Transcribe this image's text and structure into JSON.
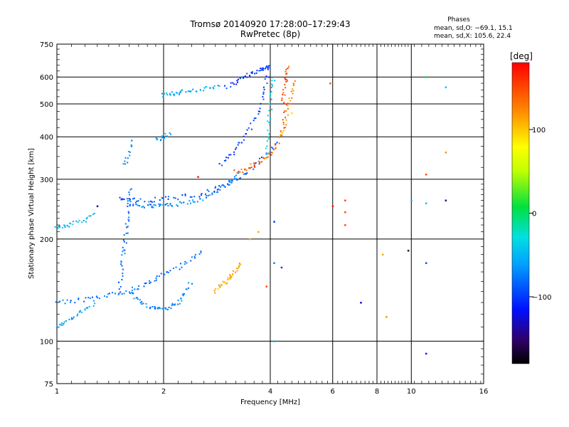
{
  "chart_data": {
    "type": "scatter",
    "title": "Tromsø 20140920 17:28:00–17:29:43",
    "subtitle": "RwPretec (8p)",
    "xlabel": "Frequency [MHz]",
    "ylabel": "Stationary phase Virtual Height [km]",
    "x_scale": "log",
    "y_scale": "log",
    "xlim": [
      1,
      16
    ],
    "ylim": [
      75,
      750
    ],
    "x_ticks": [
      "1",
      "2",
      "4",
      "6",
      "8",
      "10",
      "16"
    ],
    "y_ticks": [
      "75",
      "100",
      "200",
      "300",
      "400",
      "500",
      "600",
      "750"
    ],
    "x_grid": [
      2,
      4,
      6,
      8,
      10
    ],
    "y_grid": [
      100,
      200,
      300,
      400,
      500,
      600
    ],
    "grid": true,
    "legend": {
      "heading": "Phases",
      "lines": [
        "mean, sd,O: −69.1, 15.1",
        "mean, sd,X: 105.6, 22.4"
      ],
      "placement": "top-right"
    },
    "colorbar": {
      "label": "[deg]",
      "range": [
        -180,
        180
      ],
      "ticks": [
        "100",
        "0",
        "−100"
      ],
      "tick_values": [
        100,
        0,
        -100
      ]
    },
    "traces": [
      {
        "name": "",
        "x": [
          1.0,
          1.05,
          1.12,
          1.2,
          1.3
        ],
        "y": [
          110,
          113,
          118,
          124,
          132
        ],
        "phase": -60
      },
      {
        "name": "",
        "x": [
          1.0,
          1.1,
          1.25,
          1.4,
          1.55,
          1.7,
          1.85,
          2.0,
          2.2,
          2.4,
          2.6
        ],
        "y": [
          130,
          131,
          133,
          136,
          140,
          144,
          150,
          157,
          165,
          175,
          185
        ],
        "phase": -80
      },
      {
        "name": "",
        "x": [
          1.6,
          1.7,
          1.8,
          1.9,
          2.0,
          2.1,
          2.2,
          2.3,
          2.4
        ],
        "y": [
          140,
          132,
          127,
          125,
          124,
          126,
          130,
          138,
          150
        ],
        "phase": -70
      },
      {
        "name": "",
        "x": [
          1.0,
          1.05,
          1.1,
          1.2,
          1.3
        ],
        "y": [
          215,
          218,
          222,
          228,
          236
        ],
        "phase": -50
      },
      {
        "name": "",
        "x": [
          1.6,
          1.7,
          1.8,
          1.9,
          2.0,
          2.1,
          2.3,
          2.5,
          2.7,
          2.9,
          3.1,
          3.3
        ],
        "y": [
          255,
          252,
          250,
          250,
          251,
          252,
          255,
          260,
          268,
          280,
          295,
          312
        ],
        "phase": -70
      },
      {
        "name": "",
        "x": [
          1.5,
          1.6,
          1.8,
          2.0,
          2.2,
          2.5,
          2.8,
          3.0,
          3.3,
          3.6,
          3.9,
          4.2
        ],
        "y": [
          265,
          262,
          260,
          262,
          265,
          270,
          280,
          290,
          305,
          325,
          355,
          390
        ],
        "phase": -90
      },
      {
        "name": "",
        "x": [
          2.0,
          2.1,
          2.2,
          2.3,
          2.5,
          2.7,
          2.9
        ],
        "y": [
          530,
          535,
          540,
          545,
          550,
          555,
          560
        ],
        "phase": -55
      },
      {
        "name": "",
        "x": [
          3.0,
          3.2,
          3.4,
          3.6,
          3.8,
          3.9,
          4.0
        ],
        "y": [
          560,
          580,
          600,
          620,
          630,
          640,
          640
        ],
        "phase": -100
      },
      {
        "name": "",
        "x": [
          2.9,
          3.1,
          3.3,
          3.5,
          3.7,
          3.85,
          3.95
        ],
        "y": [
          330,
          355,
          385,
          420,
          470,
          540,
          620
        ],
        "phase": -100
      },
      {
        "name": "",
        "x": [
          3.2,
          3.4,
          3.6,
          3.8,
          4.0,
          4.2,
          4.35,
          4.45
        ],
        "y": [
          315,
          322,
          330,
          340,
          355,
          380,
          430,
          520
        ],
        "phase": 140
      },
      {
        "name": "",
        "x": [
          4.3,
          4.4,
          4.5,
          4.6,
          4.7
        ],
        "y": [
          400,
          440,
          480,
          540,
          600
        ],
        "phase": 120
      },
      {
        "name": "",
        "x": [
          4.35,
          4.4,
          4.45,
          4.5
        ],
        "y": [
          500,
          560,
          610,
          640
        ],
        "phase": 150
      },
      {
        "name": "",
        "x": [
          3.9,
          3.95,
          4.0,
          4.05,
          4.1
        ],
        "y": [
          360,
          420,
          480,
          550,
          610
        ],
        "phase": -40
      },
      {
        "name": "",
        "x": [
          2.8,
          2.9,
          3.0,
          3.1,
          3.2,
          3.3
        ],
        "y": [
          140,
          145,
          150,
          155,
          162,
          170
        ],
        "phase": 110
      },
      {
        "name": "",
        "x": [
          1.5,
          1.52,
          1.54,
          1.56,
          1.58,
          1.6,
          1.62
        ],
        "y": [
          140,
          160,
          180,
          200,
          225,
          255,
          290
        ],
        "phase": -80
      },
      {
        "name": "",
        "x": [
          1.55,
          1.6,
          1.65
        ],
        "y": [
          330,
          360,
          400
        ],
        "phase": -70
      },
      {
        "name": "",
        "x": [
          1.9,
          2.0,
          2.1
        ],
        "y": [
          390,
          400,
          410
        ],
        "phase": -60
      }
    ],
    "scatter_points": [
      {
        "x": 11.0,
        "y": 600,
        "phase": 10
      },
      {
        "x": 12.5,
        "y": 560,
        "phase": -40
      },
      {
        "x": 5.9,
        "y": 575,
        "phase": 140
      },
      {
        "x": 4.6,
        "y": 470,
        "phase": 90
      },
      {
        "x": 6.5,
        "y": 260,
        "phase": 150
      },
      {
        "x": 6.5,
        "y": 240,
        "phase": 150
      },
      {
        "x": 6.5,
        "y": 220,
        "phase": 150
      },
      {
        "x": 6.0,
        "y": 250,
        "phase": 170
      },
      {
        "x": 12.5,
        "y": 260,
        "phase": -140
      },
      {
        "x": 11.0,
        "y": 310,
        "phase": 150
      },
      {
        "x": 12.5,
        "y": 360,
        "phase": 120
      },
      {
        "x": 10.0,
        "y": 260,
        "phase": -50
      },
      {
        "x": 11.0,
        "y": 255,
        "phase": -40
      },
      {
        "x": 8.3,
        "y": 180,
        "phase": 110
      },
      {
        "x": 9.8,
        "y": 185,
        "phase": -160
      },
      {
        "x": 11.0,
        "y": 170,
        "phase": -90
      },
      {
        "x": 7.2,
        "y": 130,
        "phase": -120
      },
      {
        "x": 8.5,
        "y": 118,
        "phase": 120
      },
      {
        "x": 11.0,
        "y": 92,
        "phase": -110
      },
      {
        "x": 4.1,
        "y": 100,
        "phase": -50
      },
      {
        "x": 4.1,
        "y": 225,
        "phase": -100
      },
      {
        "x": 4.1,
        "y": 170,
        "phase": -70
      },
      {
        "x": 4.3,
        "y": 165,
        "phase": -100
      },
      {
        "x": 3.9,
        "y": 145,
        "phase": 150
      },
      {
        "x": 1.3,
        "y": 250,
        "phase": -150
      },
      {
        "x": 2.5,
        "y": 305,
        "phase": 170
      },
      {
        "x": 3.5,
        "y": 200,
        "phase": 110
      },
      {
        "x": 3.7,
        "y": 210,
        "phase": 110
      }
    ]
  }
}
